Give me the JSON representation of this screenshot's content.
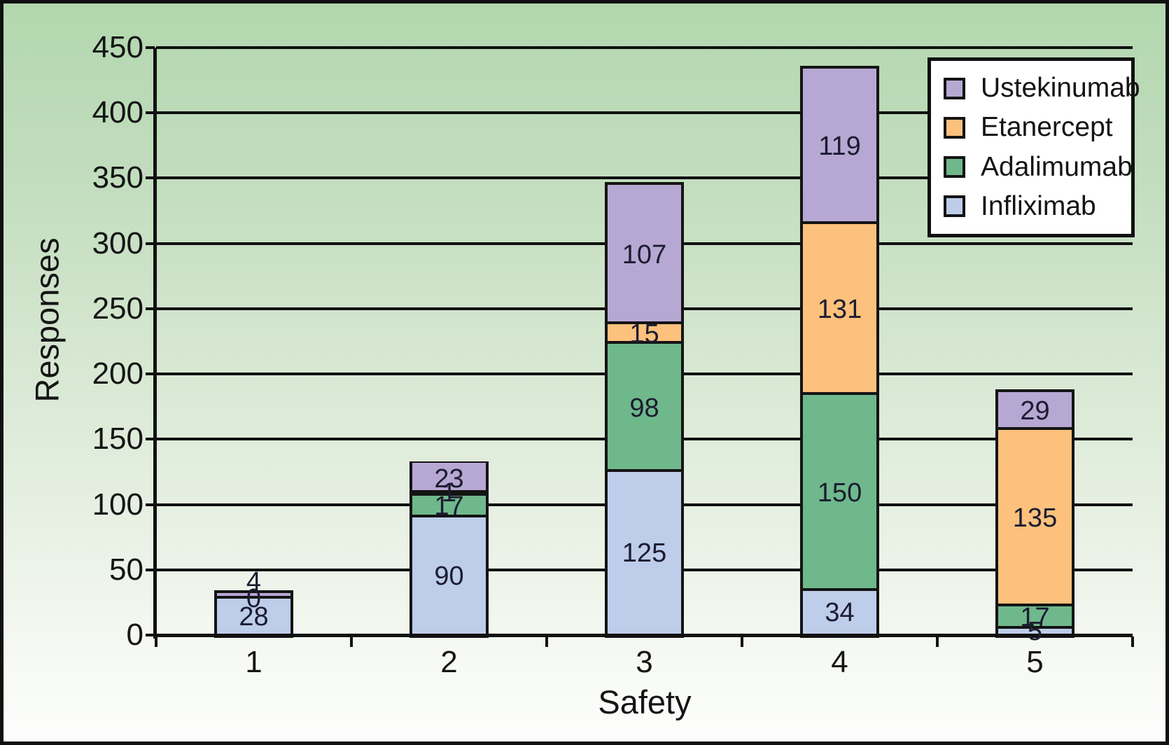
{
  "chart_data": {
    "type": "bar",
    "stacked": true,
    "title": "",
    "xlabel": "Safety",
    "ylabel": "Responses",
    "categories": [
      "1",
      "2",
      "3",
      "4",
      "5"
    ],
    "series": [
      {
        "name": "Infliximab",
        "color": "#bdcdea",
        "values": [
          28,
          90,
          125,
          34,
          5
        ],
        "labels_shown": [
          true,
          true,
          true,
          true,
          true
        ]
      },
      {
        "name": "Adalimumab",
        "color": "#6fb88c",
        "values": [
          0,
          17,
          98,
          150,
          17
        ],
        "labels_shown": [
          true,
          true,
          true,
          true,
          true
        ]
      },
      {
        "name": "Etanercept",
        "color": "#fcc17d",
        "values": [
          0,
          1,
          15,
          131,
          135
        ],
        "labels_shown": [
          false,
          true,
          true,
          true,
          true
        ]
      },
      {
        "name": "Ustekinumab",
        "color": "#b7a8d3",
        "values": [
          4,
          23,
          107,
          119,
          29
        ],
        "labels_shown": [
          true,
          true,
          true,
          true,
          true
        ]
      }
    ],
    "ylim": [
      0,
      450
    ],
    "ytick_step": 50,
    "grid": true,
    "legend": {
      "position": "top-right",
      "order": [
        "Ustekinumab",
        "Etanercept",
        "Adalimumab",
        "Infliximab"
      ]
    }
  }
}
